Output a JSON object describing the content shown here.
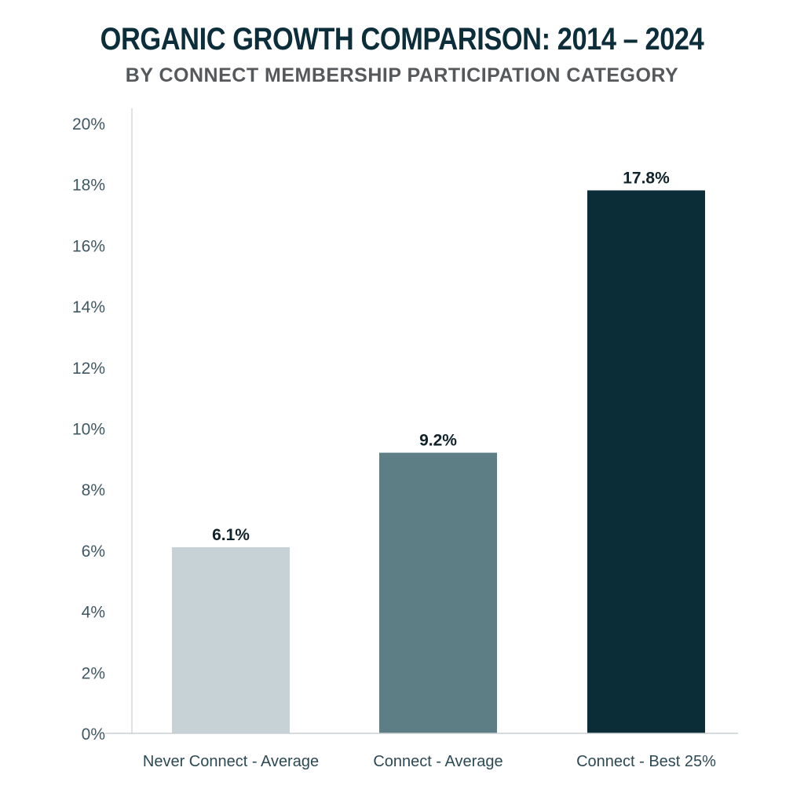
{
  "chart_data": {
    "type": "bar",
    "title": "ORGANIC GROWTH COMPARISON: 2014 – 2024",
    "subtitle": "BY CONNECT MEMBERSHIP PARTICIPATION CATEGORY",
    "categories": [
      "Never Connect - Average",
      "Connect - Average",
      "Connect - Best 25%"
    ],
    "values": [
      6.1,
      9.2,
      17.8
    ],
    "data_labels": [
      "6.1%",
      "9.2%",
      "17.8%"
    ],
    "bar_colors": [
      "#c6d2d6",
      "#5e7e86",
      "#0b2d37"
    ],
    "ylim": [
      0,
      20
    ],
    "yticks": [
      0,
      2,
      4,
      6,
      8,
      10,
      12,
      14,
      16,
      18,
      20
    ],
    "ytick_labels": [
      "0%",
      "2%",
      "4%",
      "6%",
      "8%",
      "10%",
      "12%",
      "14%",
      "16%",
      "18%",
      "20%"
    ],
    "xlabel": "",
    "ylabel": "",
    "grid": false,
    "legend": "none"
  }
}
